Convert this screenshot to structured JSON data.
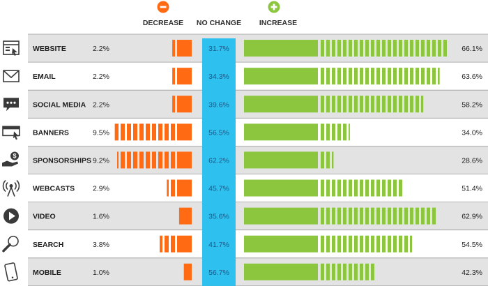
{
  "header": {
    "decrease_label": "DECREASE",
    "no_change_label": "NO CHANGE",
    "increase_label": "INCREASE"
  },
  "colors": {
    "decrease": "#ff6a13",
    "no_change": "#2ec0ee",
    "increase": "#8cc63e",
    "row_shade": "#e3e3e3",
    "icon": "#3a3a3a"
  },
  "chart_data": {
    "type": "bar",
    "categories": [
      "WEBSITE",
      "EMAIL",
      "SOCIAL MEDIA",
      "BANNERS",
      "SPONSORSHIPS",
      "WEBCASTS",
      "VIDEO",
      "SEARCH",
      "MOBILE"
    ],
    "icons": [
      "website-icon",
      "email-icon",
      "social-media-icon",
      "banners-icon",
      "sponsorships-icon",
      "webcasts-icon",
      "video-icon",
      "search-icon",
      "mobile-icon"
    ],
    "series": [
      {
        "name": "DECREASE",
        "values": [
          2.2,
          2.2,
          2.2,
          9.5,
          9.2,
          2.9,
          1.6,
          3.8,
          1.0
        ],
        "labels": [
          "2.2%",
          "2.2%",
          "2.2%",
          "9.5%",
          "9.2%",
          "2.9%",
          "1.6%",
          "3.8%",
          "1.0%"
        ]
      },
      {
        "name": "NO CHANGE",
        "values": [
          31.7,
          34.3,
          39.6,
          56.5,
          62.2,
          45.7,
          35.6,
          41.7,
          56.7
        ],
        "labels": [
          "31.7%",
          "34.3%",
          "39.6%",
          "56.5%",
          "62.2%",
          "45.7%",
          "35.6%",
          "41.7%",
          "56.7%"
        ]
      },
      {
        "name": "INCREASE",
        "values": [
          66.1,
          63.6,
          58.2,
          34.0,
          28.6,
          51.4,
          62.9,
          54.5,
          42.3
        ],
        "labels": [
          "66.1%",
          "63.6%",
          "58.2%",
          "34.0%",
          "28.6%",
          "51.4%",
          "62.9%",
          "54.5%",
          "42.3%"
        ]
      }
    ]
  }
}
